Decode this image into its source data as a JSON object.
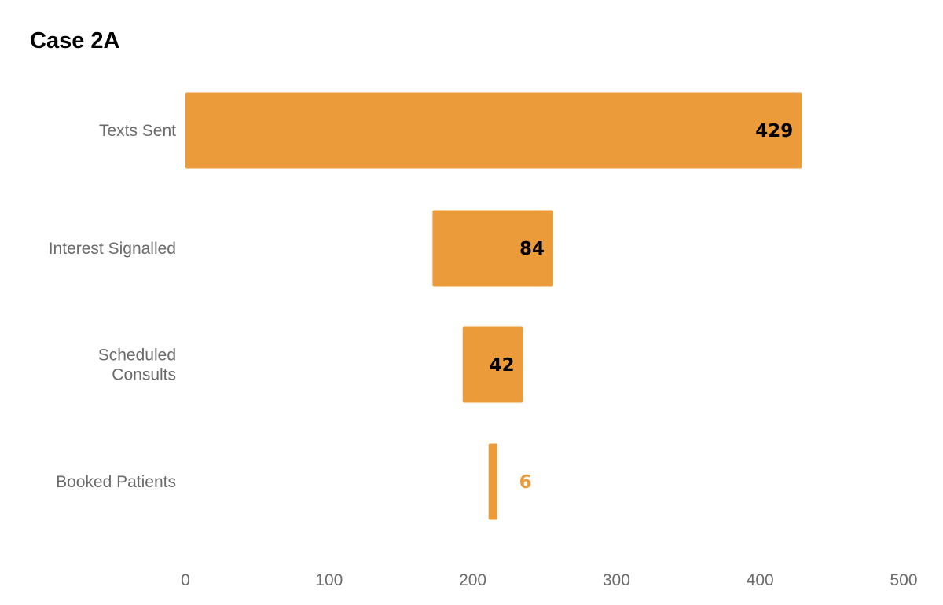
{
  "chart_data": {
    "type": "bar",
    "orientation": "horizontal",
    "style": "funnel",
    "title": "Case 2A",
    "xlabel": "",
    "ylabel": "",
    "categories": [
      "Texts Sent",
      "Interest Signalled",
      "Scheduled Consults",
      "Booked Patients"
    ],
    "category_lines": [
      [
        "Texts Sent"
      ],
      [
        "Interest Signalled"
      ],
      [
        "Scheduled",
        "Consults"
      ],
      [
        "Booked Patients"
      ]
    ],
    "values": [
      429,
      84,
      42,
      6
    ],
    "data_labels": [
      "429",
      "84",
      "42",
      "6"
    ],
    "xlim": [
      0,
      500
    ],
    "xticks": [
      0,
      100,
      200,
      300,
      400,
      500
    ],
    "xtick_labels": [
      "0",
      "100",
      "200",
      "300",
      "400",
      "500"
    ],
    "grid": false,
    "legend": "none",
    "colors": {
      "bar": "#EC9B3B",
      "label_inside": "#000000",
      "label_outside": "#EC9B3B",
      "category_text": "#6b6b6b",
      "tick_text": "#6b6b6b",
      "title": "#000000"
    }
  }
}
